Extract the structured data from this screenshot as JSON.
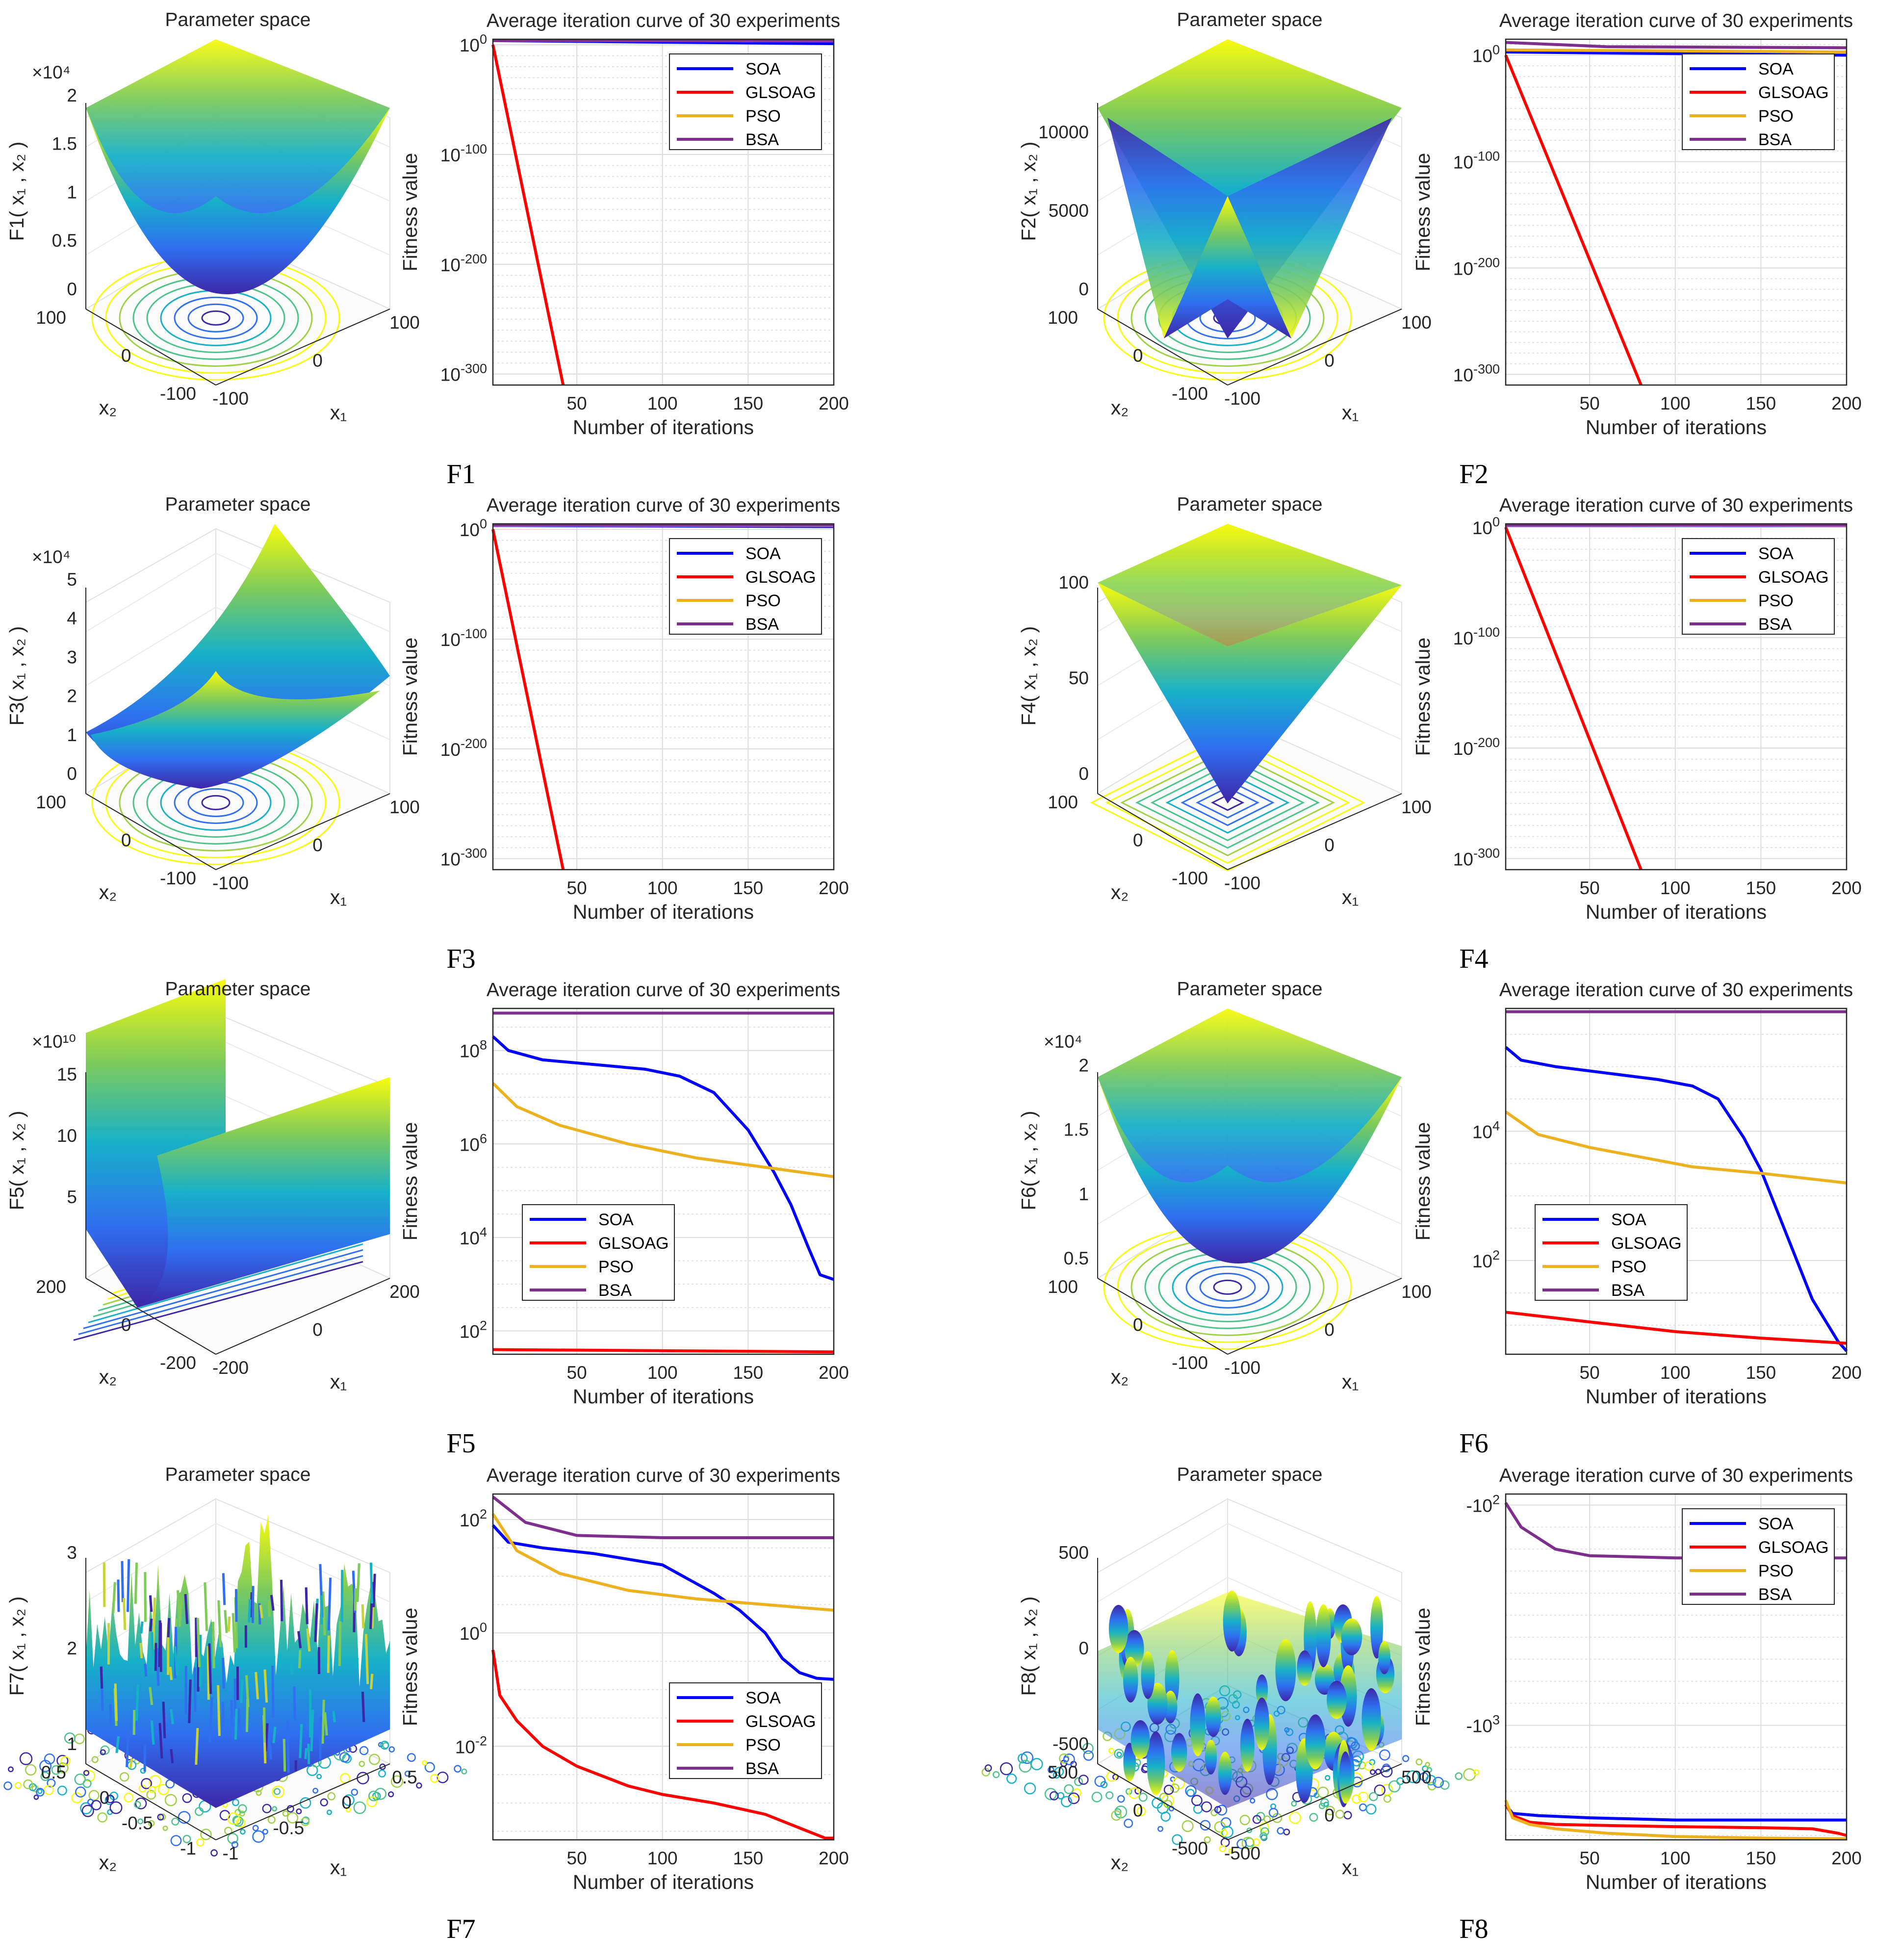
{
  "chart_data": [
    {
      "id": "F1",
      "caption": "F1",
      "type": "line",
      "surface": {
        "title": "Parameter space",
        "zlabel": "F1( x₁ , x₂ )",
        "zticks": [
          "0",
          "0.5",
          "1",
          "1.5",
          "2"
        ],
        "zexp": "×10⁴",
        "xticks": [
          "-100",
          "0",
          "100"
        ],
        "yticks": [
          "-100",
          "0",
          "100"
        ],
        "xlabel": "x₁",
        "ylabel": "x₂",
        "shape": "bowl"
      },
      "title": "Average iteration curve of 30 experiments",
      "xlabel": "Number of iterations",
      "ylabel": "Fitness value",
      "xlim": [
        1,
        200
      ],
      "ylim_log10": [
        -310,
        5
      ],
      "yticks": [
        {
          "mant": "10",
          "exp": "0"
        },
        {
          "mant": "10",
          "exp": "-100"
        },
        {
          "mant": "10",
          "exp": "-200"
        },
        {
          "mant": "10",
          "exp": "-300"
        }
      ],
      "xticks": [
        "50",
        "100",
        "150",
        "200"
      ],
      "legend_position": "top-right",
      "series": [
        {
          "name": "SOA",
          "color": "#0000ff",
          "x": [
            1,
            200
          ],
          "log10": [
            3.7,
            1.0
          ]
        },
        {
          "name": "GLSOAG",
          "color": "#ff0000",
          "x": [
            1,
            42
          ],
          "log10": [
            0,
            -310
          ]
        },
        {
          "name": "PSO",
          "color": "#edb120",
          "x": [
            1,
            200
          ],
          "log10": [
            3.8,
            3.6
          ]
        },
        {
          "name": "BSA",
          "color": "#7e2f8e",
          "x": [
            1,
            200
          ],
          "log10": [
            3.9,
            3.9
          ]
        }
      ]
    },
    {
      "id": "F2",
      "caption": "F2",
      "type": "line",
      "surface": {
        "title": "Parameter space",
        "zlabel": "F2( x₁ , x₂ )",
        "zticks": [
          "0",
          "5000",
          "10000"
        ],
        "zexp": "",
        "xticks": [
          "-100",
          "0",
          "100"
        ],
        "yticks": [
          "-100",
          "0",
          "100"
        ],
        "xlabel": "x₁",
        "ylabel": "x₂",
        "shape": "star"
      },
      "title": "Average iteration curve of 30 experiments",
      "xlabel": "Number of iterations",
      "ylabel": "Fitness value",
      "xlim": [
        1,
        200
      ],
      "ylim_log10": [
        -310,
        15
      ],
      "yticks": [
        {
          "mant": "10",
          "exp": "0"
        },
        {
          "mant": "10",
          "exp": "-100"
        },
        {
          "mant": "10",
          "exp": "-200"
        },
        {
          "mant": "10",
          "exp": "-300"
        }
      ],
      "xticks": [
        "50",
        "100",
        "150",
        "200"
      ],
      "legend_position": "top-right",
      "series": [
        {
          "name": "SOA",
          "color": "#0000ff",
          "x": [
            1,
            100,
            200
          ],
          "log10": [
            3,
            1.5,
            0
          ]
        },
        {
          "name": "GLSOAG",
          "color": "#ff0000",
          "x": [
            1,
            80
          ],
          "log10": [
            0,
            -310
          ]
        },
        {
          "name": "PSO",
          "color": "#edb120",
          "x": [
            1,
            200
          ],
          "log10": [
            5,
            3
          ]
        },
        {
          "name": "BSA",
          "color": "#7e2f8e",
          "x": [
            1,
            60,
            200
          ],
          "log10": [
            12,
            8,
            7
          ]
        }
      ]
    },
    {
      "id": "F3",
      "caption": "F3",
      "type": "line",
      "surface": {
        "title": "Parameter space",
        "zlabel": "F3( x₁ , x₂ )",
        "zticks": [
          "0",
          "1",
          "2",
          "3",
          "4",
          "5"
        ],
        "zexp": "×10⁴",
        "xticks": [
          "-100",
          "0",
          "100"
        ],
        "yticks": [
          "-100",
          "0",
          "100"
        ],
        "xlabel": "x₁",
        "ylabel": "x₂",
        "shape": "ridge"
      },
      "title": "Average iteration curve of 30 experiments",
      "xlabel": "Number of iterations",
      "ylabel": "Fitness value",
      "xlim": [
        1,
        200
      ],
      "ylim_log10": [
        -310,
        5
      ],
      "yticks": [
        {
          "mant": "10",
          "exp": "0"
        },
        {
          "mant": "10",
          "exp": "-100"
        },
        {
          "mant": "10",
          "exp": "-200"
        },
        {
          "mant": "10",
          "exp": "-300"
        }
      ],
      "xticks": [
        "50",
        "100",
        "150",
        "200"
      ],
      "legend_position": "top-right",
      "series": [
        {
          "name": "SOA",
          "color": "#0000ff",
          "x": [
            1,
            200
          ],
          "log10": [
            3.5,
            2.5
          ]
        },
        {
          "name": "GLSOAG",
          "color": "#ff0000",
          "x": [
            1,
            42
          ],
          "log10": [
            0,
            -310
          ]
        },
        {
          "name": "PSO",
          "color": "#edb120",
          "x": [
            1,
            200
          ],
          "log10": [
            3.7,
            3.5
          ]
        },
        {
          "name": "BSA",
          "color": "#7e2f8e",
          "x": [
            1,
            200
          ],
          "log10": [
            4,
            4
          ]
        }
      ]
    },
    {
      "id": "F4",
      "caption": "F4",
      "type": "line",
      "surface": {
        "title": "Parameter space",
        "zlabel": "F4( x₁ , x₂ )",
        "zticks": [
          "0",
          "50",
          "100"
        ],
        "zexp": "",
        "xticks": [
          "-100",
          "0",
          "100"
        ],
        "yticks": [
          "-100",
          "0",
          "100"
        ],
        "xlabel": "x₁",
        "ylabel": "x₂",
        "shape": "pyramid"
      },
      "title": "Average iteration curve of 30 experiments",
      "xlabel": "Number of iterations",
      "ylabel": "Fitness value",
      "xlim": [
        1,
        200
      ],
      "ylim_log10": [
        -310,
        3
      ],
      "yticks": [
        {
          "mant": "10",
          "exp": "0"
        },
        {
          "mant": "10",
          "exp": "-100"
        },
        {
          "mant": "10",
          "exp": "-200"
        },
        {
          "mant": "10",
          "exp": "-300"
        }
      ],
      "xticks": [
        "50",
        "100",
        "150",
        "200"
      ],
      "legend_position": "top-right",
      "series": [
        {
          "name": "SOA",
          "color": "#0000ff",
          "x": [
            1,
            200
          ],
          "log10": [
            1.6,
            1.4
          ]
        },
        {
          "name": "GLSOAG",
          "color": "#ff0000",
          "x": [
            1,
            80
          ],
          "log10": [
            0,
            -310
          ]
        },
        {
          "name": "PSO",
          "color": "#edb120",
          "x": [
            1,
            200
          ],
          "log10": [
            1.8,
            1.6
          ]
        },
        {
          "name": "BSA",
          "color": "#7e2f8e",
          "x": [
            1,
            200
          ],
          "log10": [
            2,
            2
          ]
        }
      ]
    },
    {
      "id": "F5",
      "caption": "F5",
      "type": "line",
      "surface": {
        "title": "Parameter space",
        "zlabel": "F5( x₁ , x₂ )",
        "zticks": [
          "5",
          "10",
          "15"
        ],
        "zexp": "×10¹⁰",
        "xticks": [
          "-200",
          "0",
          "200"
        ],
        "yticks": [
          "-200",
          "0",
          "200"
        ],
        "xlabel": "x₁",
        "ylabel": "x₂",
        "shape": "valley"
      },
      "title": "Average iteration curve of 30 experiments",
      "xlabel": "Number of iterations",
      "ylabel": "Fitness value",
      "xlim": [
        1,
        200
      ],
      "ylim_log10": [
        1.5,
        8.9
      ],
      "yticks": [
        {
          "mant": "10",
          "exp": "8"
        },
        {
          "mant": "10",
          "exp": "6"
        },
        {
          "mant": "10",
          "exp": "4"
        },
        {
          "mant": "10",
          "exp": "2"
        }
      ],
      "xticks": [
        "50",
        "100",
        "150",
        "200"
      ],
      "legend_position": "mid-left",
      "series": [
        {
          "name": "SOA",
          "color": "#0000ff",
          "x": [
            1,
            10,
            30,
            60,
            90,
            110,
            130,
            150,
            165,
            175,
            185,
            192,
            200
          ],
          "log10": [
            8.3,
            8.0,
            7.8,
            7.7,
            7.6,
            7.45,
            7.1,
            6.3,
            5.4,
            4.7,
            3.8,
            3.2,
            3.1
          ]
        },
        {
          "name": "GLSOAG",
          "color": "#ff0000",
          "x": [
            1,
            200
          ],
          "log10": [
            1.6,
            1.55
          ]
        },
        {
          "name": "PSO",
          "color": "#edb120",
          "x": [
            1,
            15,
            40,
            80,
            120,
            160,
            200
          ],
          "log10": [
            7.3,
            6.8,
            6.4,
            6.0,
            5.7,
            5.5,
            5.3
          ]
        },
        {
          "name": "BSA",
          "color": "#7e2f8e",
          "x": [
            1,
            200
          ],
          "log10": [
            8.8,
            8.8
          ]
        }
      ]
    },
    {
      "id": "F6",
      "caption": "F6",
      "type": "line",
      "surface": {
        "title": "Parameter space",
        "zlabel": "F6( x₁ , x₂ )",
        "zticks": [
          "0.5",
          "1",
          "1.5",
          "2"
        ],
        "zexp": "×10⁴",
        "xticks": [
          "-100",
          "0",
          "100"
        ],
        "yticks": [
          "-100",
          "0",
          "100"
        ],
        "xlabel": "x₁",
        "ylabel": "x₂",
        "shape": "bowl"
      },
      "title": "Average iteration curve of 30 experiments",
      "xlabel": "Number of iterations",
      "ylabel": "Fitness value",
      "xlim": [
        1,
        200
      ],
      "ylim_log10": [
        0.55,
        5.9
      ],
      "yticks": [
        {
          "mant": "10",
          "exp": "4"
        },
        {
          "mant": "10",
          "exp": "2"
        }
      ],
      "xticks": [
        "50",
        "100",
        "150",
        "200"
      ],
      "legend_position": "mid-left",
      "series": [
        {
          "name": "SOA",
          "color": "#0000ff",
          "x": [
            1,
            10,
            30,
            60,
            90,
            110,
            125,
            140,
            150,
            165,
            180,
            195,
            200
          ],
          "log10": [
            5.3,
            5.1,
            5.0,
            4.9,
            4.8,
            4.7,
            4.5,
            3.9,
            3.4,
            2.4,
            1.4,
            0.75,
            0.6
          ]
        },
        {
          "name": "GLSOAG",
          "color": "#ff0000",
          "x": [
            1,
            50,
            100,
            150,
            200
          ],
          "log10": [
            1.2,
            1.05,
            0.9,
            0.8,
            0.72
          ]
        },
        {
          "name": "PSO",
          "color": "#edb120",
          "x": [
            1,
            20,
            50,
            80,
            110,
            150,
            200
          ],
          "log10": [
            4.3,
            3.95,
            3.75,
            3.6,
            3.45,
            3.35,
            3.2
          ]
        },
        {
          "name": "BSA",
          "color": "#7e2f8e",
          "x": [
            1,
            200
          ],
          "log10": [
            5.85,
            5.85
          ]
        }
      ]
    },
    {
      "id": "F7",
      "caption": "F7",
      "type": "line",
      "surface": {
        "title": "Parameter space",
        "zlabel": "F7( x₁ , x₂ )",
        "zticks": [
          "1",
          "2",
          "3"
        ],
        "zexp": "",
        "xticks": [
          "-1",
          "-0.5",
          "0",
          "0.5"
        ],
        "yticks": [
          "-1",
          "-0.5",
          "0",
          "0.5"
        ],
        "xlabel": "x₁",
        "ylabel": "x₂",
        "shape": "noise"
      },
      "title": "Average iteration curve of 30 experiments",
      "xlabel": "Number of iterations",
      "ylabel": "Fitness value",
      "xlim": [
        1,
        200
      ],
      "ylim_log10": [
        -3.65,
        2.45
      ],
      "yticks": [
        {
          "mant": "10",
          "exp": "2"
        },
        {
          "mant": "10",
          "exp": "0"
        },
        {
          "mant": "10",
          "exp": "-2"
        }
      ],
      "xticks": [
        "50",
        "100",
        "150",
        "200"
      ],
      "legend_position": "bottom-right",
      "series": [
        {
          "name": "SOA",
          "color": "#0000ff",
          "x": [
            1,
            10,
            30,
            60,
            100,
            130,
            145,
            160,
            170,
            180,
            190,
            200
          ],
          "log10": [
            1.9,
            1.6,
            1.5,
            1.4,
            1.2,
            0.7,
            0.4,
            0.0,
            -0.45,
            -0.7,
            -0.8,
            -0.82
          ]
        },
        {
          "name": "GLSOAG",
          "color": "#ff0000",
          "x": [
            1,
            5,
            15,
            30,
            50,
            80,
            100,
            130,
            160,
            185,
            195,
            200
          ],
          "log10": [
            -0.3,
            -1.1,
            -1.55,
            -2.0,
            -2.35,
            -2.7,
            -2.85,
            -3.0,
            -3.2,
            -3.5,
            -3.62,
            -3.62
          ]
        },
        {
          "name": "PSO",
          "color": "#edb120",
          "x": [
            1,
            15,
            40,
            80,
            120,
            160,
            200
          ],
          "log10": [
            2.1,
            1.45,
            1.05,
            0.75,
            0.6,
            0.5,
            0.4
          ]
        },
        {
          "name": "BSA",
          "color": "#7e2f8e",
          "x": [
            1,
            20,
            50,
            100,
            200
          ],
          "log10": [
            2.4,
            1.95,
            1.72,
            1.68,
            1.68
          ]
        }
      ]
    },
    {
      "id": "F8",
      "caption": "F8",
      "type": "line",
      "surface": {
        "title": "Parameter space",
        "zlabel": "F8( x₁ , x₂ )",
        "zticks": [
          "-500",
          "0",
          "500"
        ],
        "zexp": "",
        "xticks": [
          "-500",
          "0",
          "500"
        ],
        "yticks": [
          "-500",
          "0",
          "500"
        ],
        "xlabel": "x₁",
        "ylabel": "x₂",
        "shape": "waves"
      },
      "title": "Average iteration curve of 30 experiments",
      "xlabel": "Number of iterations",
      "ylabel": "Fitness value",
      "xlim": [
        1,
        200
      ],
      "ylim_log10": [
        1.95,
        3.52
      ],
      "yaxis_negative": true,
      "yticks": [
        {
          "mant": "-10",
          "exp": "2"
        },
        {
          "mant": "-10",
          "exp": "3"
        }
      ],
      "xticks": [
        "50",
        "100",
        "150",
        "200"
      ],
      "legend_position": "top-right",
      "series": [
        {
          "name": "SOA",
          "color": "#0000ff",
          "x": [
            1,
            5,
            20,
            50,
            100,
            150,
            200
          ],
          "log10": [
            3.36,
            3.4,
            3.41,
            3.42,
            3.43,
            3.43,
            3.43
          ]
        },
        {
          "name": "GLSOAG",
          "color": "#ff0000",
          "x": [
            1,
            5,
            15,
            30,
            60,
            100,
            150,
            180,
            195,
            200
          ],
          "log10": [
            3.36,
            3.41,
            3.44,
            3.45,
            3.455,
            3.46,
            3.465,
            3.47,
            3.49,
            3.5
          ]
        },
        {
          "name": "PSO",
          "color": "#edb120",
          "x": [
            1,
            5,
            15,
            30,
            60,
            100,
            150,
            200
          ],
          "log10": [
            3.34,
            3.42,
            3.45,
            3.47,
            3.49,
            3.505,
            3.512,
            3.515
          ]
        },
        {
          "name": "BSA",
          "color": "#7e2f8e",
          "x": [
            1,
            10,
            30,
            50,
            100,
            200
          ],
          "log10": [
            1.99,
            2.1,
            2.2,
            2.23,
            2.24,
            2.24
          ]
        }
      ]
    }
  ]
}
